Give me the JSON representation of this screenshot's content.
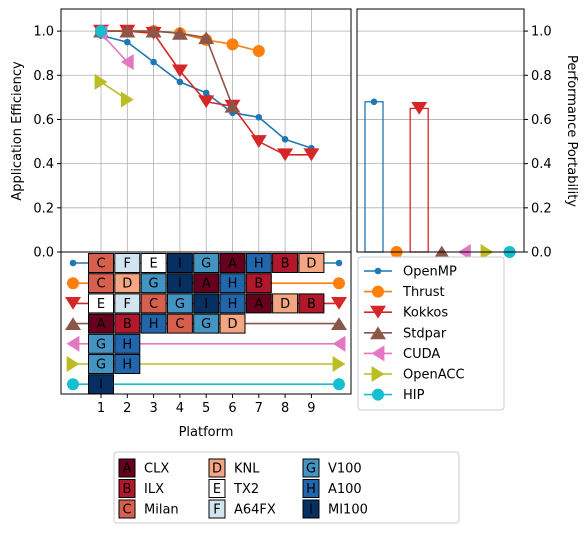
{
  "chart_data": [
    {
      "type": "line",
      "ylabel": "Application Efficiency",
      "ylim": [
        0,
        1.1
      ],
      "yticks": [
        "0.0",
        "0.2",
        "0.4",
        "0.6",
        "0.8",
        "1.0"
      ],
      "xticks": [
        "1",
        "2",
        "3",
        "4",
        "5",
        "6",
        "7",
        "8",
        "9"
      ],
      "grid": true,
      "series": [
        {
          "name": "OpenMP",
          "color": "#1f77b4",
          "marker": "circle-small",
          "x": [
            1,
            2,
            3,
            4,
            5,
            6,
            7,
            8,
            9
          ],
          "y": [
            0.98,
            0.95,
            0.86,
            0.77,
            0.72,
            0.63,
            0.61,
            0.51,
            0.47
          ]
        },
        {
          "name": "Thrust",
          "color": "#ff7f0e",
          "marker": "circle",
          "x": [
            1,
            2,
            3,
            4,
            5,
            6,
            7
          ],
          "y": [
            1.0,
            1.0,
            1.0,
            0.99,
            0.96,
            0.94,
            0.91
          ]
        },
        {
          "name": "Kokkos",
          "color": "#d62728",
          "marker": "triangle-down",
          "x": [
            1,
            2,
            3,
            4,
            5,
            6,
            7,
            8,
            9
          ],
          "y": [
            1.0,
            1.0,
            0.99,
            0.82,
            0.68,
            0.66,
            0.5,
            0.44,
            0.44
          ]
        },
        {
          "name": "Stdpar",
          "color": "#8c564b",
          "marker": "triangle-up",
          "x": [
            1,
            2,
            3,
            4,
            5,
            6
          ],
          "y": [
            1.0,
            1.0,
            1.0,
            0.99,
            0.97,
            0.66
          ]
        },
        {
          "name": "CUDA",
          "color": "#e377c2",
          "marker": "triangle-left",
          "x": [
            1,
            2
          ],
          "y": [
            0.99,
            0.86
          ]
        },
        {
          "name": "OpenACC",
          "color": "#bcbd22",
          "marker": "triangle-right",
          "x": [
            1,
            2
          ],
          "y": [
            0.77,
            0.69
          ]
        },
        {
          "name": "HIP",
          "color": "#17becf",
          "marker": "circle",
          "x": [
            1
          ],
          "y": [
            1.0
          ]
        }
      ]
    },
    {
      "type": "bar",
      "ylabel": "Performance Portability",
      "ylim": [
        0,
        1.1
      ],
      "yticks": [
        "0.0",
        "0.2",
        "0.4",
        "0.6",
        "0.8",
        "1.0"
      ],
      "grid": true,
      "categories": [
        "OpenMP",
        "Thrust",
        "Kokkos",
        "Stdpar",
        "CUDA",
        "OpenACC",
        "HIP"
      ],
      "values": [
        0.68,
        0.0,
        0.65,
        0.0,
        0.0,
        0.0,
        0.0
      ]
    },
    {
      "type": "table",
      "xlabel": "Platform",
      "xticks": [
        "1",
        "2",
        "3",
        "4",
        "5",
        "6",
        "7",
        "8",
        "9"
      ],
      "rows": [
        {
          "model": "OpenMP",
          "cells": [
            "C",
            "F",
            "E",
            "I",
            "G",
            "A",
            "H",
            "B",
            "D"
          ]
        },
        {
          "model": "Thrust",
          "cells": [
            "C",
            "D",
            "G",
            "I",
            "A",
            "H",
            "B"
          ]
        },
        {
          "model": "Kokkos",
          "cells": [
            "E",
            "F",
            "C",
            "G",
            "I",
            "H",
            "A",
            "D",
            "B"
          ]
        },
        {
          "model": "Stdpar",
          "cells": [
            "A",
            "B",
            "H",
            "C",
            "G",
            "D"
          ]
        },
        {
          "model": "CUDA",
          "cells": [
            "G",
            "H"
          ]
        },
        {
          "model": "OpenACC",
          "cells": [
            "G",
            "H"
          ]
        },
        {
          "model": "HIP",
          "cells": [
            "I"
          ]
        }
      ]
    }
  ],
  "platforms": [
    {
      "key": "A",
      "name": "CLX",
      "color": "#67001f",
      "text_color": "#000000"
    },
    {
      "key": "B",
      "name": "ILX",
      "color": "#b2182b",
      "text_color": "#000000"
    },
    {
      "key": "C",
      "name": "Milan",
      "color": "#d6604d",
      "text_color": "#000000"
    },
    {
      "key": "D",
      "name": "KNL",
      "color": "#f4a582",
      "text_color": "#000000"
    },
    {
      "key": "E",
      "name": "TX2",
      "color": "#ffffff",
      "text_color": "#000000"
    },
    {
      "key": "F",
      "name": "A64FX",
      "color": "#d1e5f0",
      "text_color": "#000000"
    },
    {
      "key": "G",
      "name": "V100",
      "color": "#4393c3",
      "text_color": "#000000"
    },
    {
      "key": "H",
      "name": "A100",
      "color": "#2166ac",
      "text_color": "#000000"
    },
    {
      "key": "I",
      "name": "MI100",
      "color": "#053061",
      "text_color": "#000000"
    }
  ]
}
